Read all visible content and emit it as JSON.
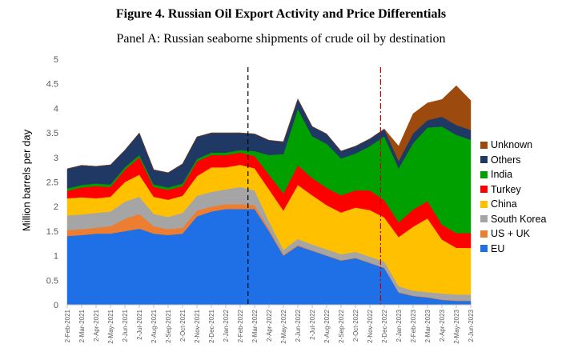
{
  "header": {
    "figure_title": "Figure 4. Russian Oil Export Activity and Price Differentials",
    "panel_title": "Panel A: Russian seaborne shipments of crude oil by destination"
  },
  "chart_data": {
    "type": "area",
    "stacked": true,
    "ylabel": "Million barrels per day",
    "ylim": [
      0,
      5
    ],
    "yticks": [
      "0",
      "0.5",
      "1",
      "1.5",
      "2",
      "2.5",
      "3",
      "3.5",
      "4",
      "4.5",
      "5"
    ],
    "grid": false,
    "legend_position": "right",
    "x_ticks": [
      "2-Feb-2021",
      "2-Mar-2021",
      "2-Apr-2021",
      "2-May-2021",
      "2-Jun-2021",
      "2-Jul-2021",
      "2-Aug-2021",
      "2-Sep-2021",
      "2-Oct-2021",
      "2-Nov-2021",
      "2-Dec-2021",
      "2-Jan-2022",
      "2-Feb-2022",
      "2-Mar-2022",
      "2-Apr-2022",
      "2-May-2022",
      "2-Jun-2022",
      "2-Jul-2022",
      "2-Aug-2022",
      "2-Sep-2022",
      "2-Oct-2022",
      "2-Nov-2022",
      "2-Dec-2022",
      "2-Jan-2023",
      "2-Feb-2023",
      "2-Mar-2023",
      "2-Apr-2023",
      "2-May-2023",
      "2-Jun-2023"
    ],
    "x": [
      "2021-02",
      "2021-03",
      "2021-04",
      "2021-05",
      "2021-06",
      "2021-07",
      "2021-08",
      "2021-09",
      "2021-10",
      "2021-11",
      "2021-12",
      "2022-01",
      "2022-02",
      "2022-03",
      "2022-04",
      "2022-05",
      "2022-06",
      "2022-07",
      "2022-08",
      "2022-09",
      "2022-10",
      "2022-11",
      "2022-12",
      "2023-01",
      "2023-02",
      "2023-03",
      "2023-04",
      "2023-05",
      "2023-06"
    ],
    "series": [
      {
        "name": "EU",
        "color": "#1f6fe6",
        "values": [
          1.4,
          1.42,
          1.45,
          1.45,
          1.5,
          1.55,
          1.45,
          1.42,
          1.45,
          1.8,
          1.9,
          1.95,
          1.95,
          1.95,
          1.5,
          1.0,
          1.2,
          1.1,
          1.0,
          0.9,
          0.95,
          0.85,
          0.75,
          0.25,
          0.18,
          0.15,
          0.1,
          0.08,
          0.08
        ]
      },
      {
        "name": "US + UK",
        "color": "#ed7d31",
        "values": [
          0.12,
          0.12,
          0.12,
          0.15,
          0.25,
          0.3,
          0.15,
          0.12,
          0.12,
          0.12,
          0.1,
          0.1,
          0.1,
          0.08,
          0.05,
          0.02,
          0.02,
          0.01,
          0.01,
          0.01,
          0.01,
          0.01,
          0.01,
          0.01,
          0.01,
          0.01,
          0.01,
          0.01,
          0.01
        ]
      },
      {
        "name": "South Korea",
        "color": "#a5a5a5",
        "values": [
          0.3,
          0.3,
          0.3,
          0.3,
          0.35,
          0.35,
          0.25,
          0.25,
          0.3,
          0.3,
          0.3,
          0.3,
          0.35,
          0.3,
          0.15,
          0.1,
          0.12,
          0.12,
          0.12,
          0.12,
          0.12,
          0.12,
          0.12,
          0.12,
          0.1,
          0.1,
          0.12,
          0.12,
          0.12
        ]
      },
      {
        "name": "China",
        "color": "#ffc000",
        "values": [
          0.35,
          0.35,
          0.3,
          0.3,
          0.4,
          0.45,
          0.35,
          0.35,
          0.35,
          0.4,
          0.5,
          0.45,
          0.45,
          0.45,
          0.65,
          0.8,
          1.1,
          1.0,
          0.9,
          0.85,
          0.9,
          0.95,
          0.9,
          1.0,
          1.3,
          1.5,
          1.1,
          0.95,
          0.95
        ]
      },
      {
        "name": "Turkey",
        "color": "#ff0000",
        "values": [
          0.15,
          0.2,
          0.25,
          0.2,
          0.25,
          0.35,
          0.2,
          0.2,
          0.2,
          0.3,
          0.25,
          0.25,
          0.25,
          0.25,
          0.3,
          0.35,
          0.4,
          0.35,
          0.35,
          0.35,
          0.35,
          0.4,
          0.35,
          0.3,
          0.35,
          0.35,
          0.3,
          0.3,
          0.3
        ]
      },
      {
        "name": "India",
        "color": "#00a000",
        "values": [
          0.05,
          0.05,
          0.05,
          0.05,
          0.05,
          0.05,
          0.05,
          0.05,
          0.05,
          0.05,
          0.05,
          0.05,
          0.05,
          0.1,
          0.4,
          0.8,
          1.15,
          0.85,
          0.9,
          0.75,
          0.75,
          0.9,
          1.3,
          1.1,
          1.35,
          1.5,
          2.0,
          2.0,
          1.9
        ]
      },
      {
        "name": "Others",
        "color": "#1f3864",
        "values": [
          0.4,
          0.4,
          0.35,
          0.4,
          0.35,
          0.45,
          0.3,
          0.3,
          0.4,
          0.45,
          0.4,
          0.4,
          0.35,
          0.35,
          0.3,
          0.25,
          0.2,
          0.2,
          0.2,
          0.15,
          0.15,
          0.15,
          0.15,
          0.15,
          0.2,
          0.15,
          0.2,
          0.2,
          0.2
        ]
      },
      {
        "name": "Unknown",
        "color": "#9c4a0e",
        "values": [
          0,
          0,
          0,
          0,
          0,
          0,
          0,
          0,
          0,
          0,
          0,
          0,
          0,
          0,
          0,
          0,
          0,
          0,
          0,
          0,
          0,
          0,
          0,
          0.3,
          0.4,
          0.35,
          0.35,
          0.8,
          0.6
        ]
      }
    ],
    "vertical_lines": [
      {
        "x": "2022-02-24",
        "style": "dashed",
        "color": "#000000"
      },
      {
        "x": "2022-12-05",
        "style": "dash-dot",
        "color": "#c00000"
      }
    ]
  }
}
